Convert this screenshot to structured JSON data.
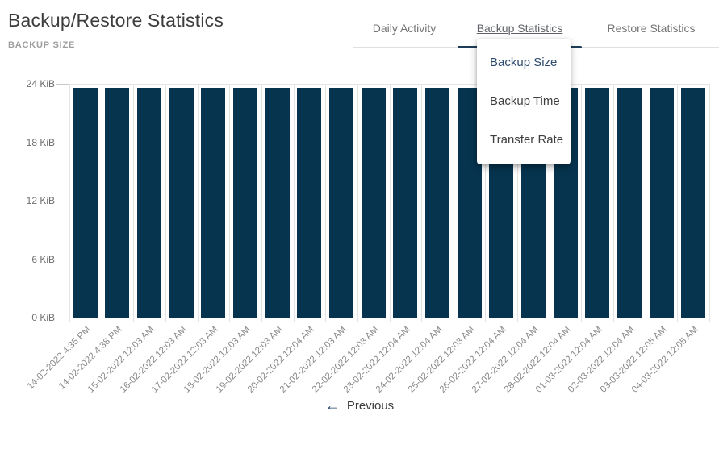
{
  "header": {
    "title": "Backup/Restore Statistics",
    "section_label": "BACKUP SIZE"
  },
  "tabs": [
    {
      "label": "Daily Activity",
      "active": false
    },
    {
      "label": "Backup Statistics",
      "active": true
    },
    {
      "label": "Restore Statistics",
      "active": false
    }
  ],
  "dropdown": {
    "items": [
      {
        "label": "Backup Size",
        "selected": true
      },
      {
        "label": "Backup Time",
        "selected": false
      },
      {
        "label": "Transfer Rate",
        "selected": false
      }
    ]
  },
  "footer": {
    "previous_icon": "arrow-left-icon",
    "previous_label": "Previous"
  },
  "colors": {
    "bar": "#06344f",
    "accent_navy": "#1e3c58",
    "menu_selected_text": "#2d4b6d",
    "tab_text": "#757575",
    "grid": "#e4e4e4",
    "axis_tick": "#c9c9c9",
    "title_text": "#3d3d3d",
    "section_label_text": "#9e9e9e"
  },
  "chart_data": {
    "type": "bar",
    "title": "BACKUP SIZE",
    "unit": "KiB",
    "ylim": [
      0,
      24
    ],
    "grid": true,
    "bar_color": "#06344f",
    "y_tick_values": [
      0,
      6,
      12,
      18,
      24
    ],
    "y_tick_labels": [
      "0 KiB",
      "6 KiB",
      "12 KiB",
      "18 KiB",
      "24 KiB"
    ],
    "categories": [
      "14-02-2022 4:35 PM",
      "14-02-2022 4:38 PM",
      "15-02-2022 12:03 AM",
      "16-02-2022 12:03 AM",
      "17-02-2022 12:03 AM",
      "18-02-2022 12:03 AM",
      "19-02-2022 12:03 AM",
      "20-02-2022 12:04 AM",
      "21-02-2022 12:03 AM",
      "22-02-2022 12:03 AM",
      "23-02-2022 12:04 AM",
      "24-02-2022 12:04 AM",
      "25-02-2022 12:03 AM",
      "26-02-2022 12:04 AM",
      "27-02-2022 12:04 AM",
      "28-02-2022 12:04 AM",
      "01-03-2022 12:04 AM",
      "02-03-2022 12:04 AM",
      "03-03-2022 12:05 AM",
      "04-03-2022 12:05 AM"
    ],
    "values": [
      23.6,
      23.6,
      23.6,
      23.6,
      23.6,
      23.6,
      23.6,
      23.6,
      23.6,
      23.6,
      23.6,
      23.6,
      23.6,
      23.6,
      23.6,
      23.6,
      23.6,
      23.6,
      23.6,
      23.6
    ]
  }
}
